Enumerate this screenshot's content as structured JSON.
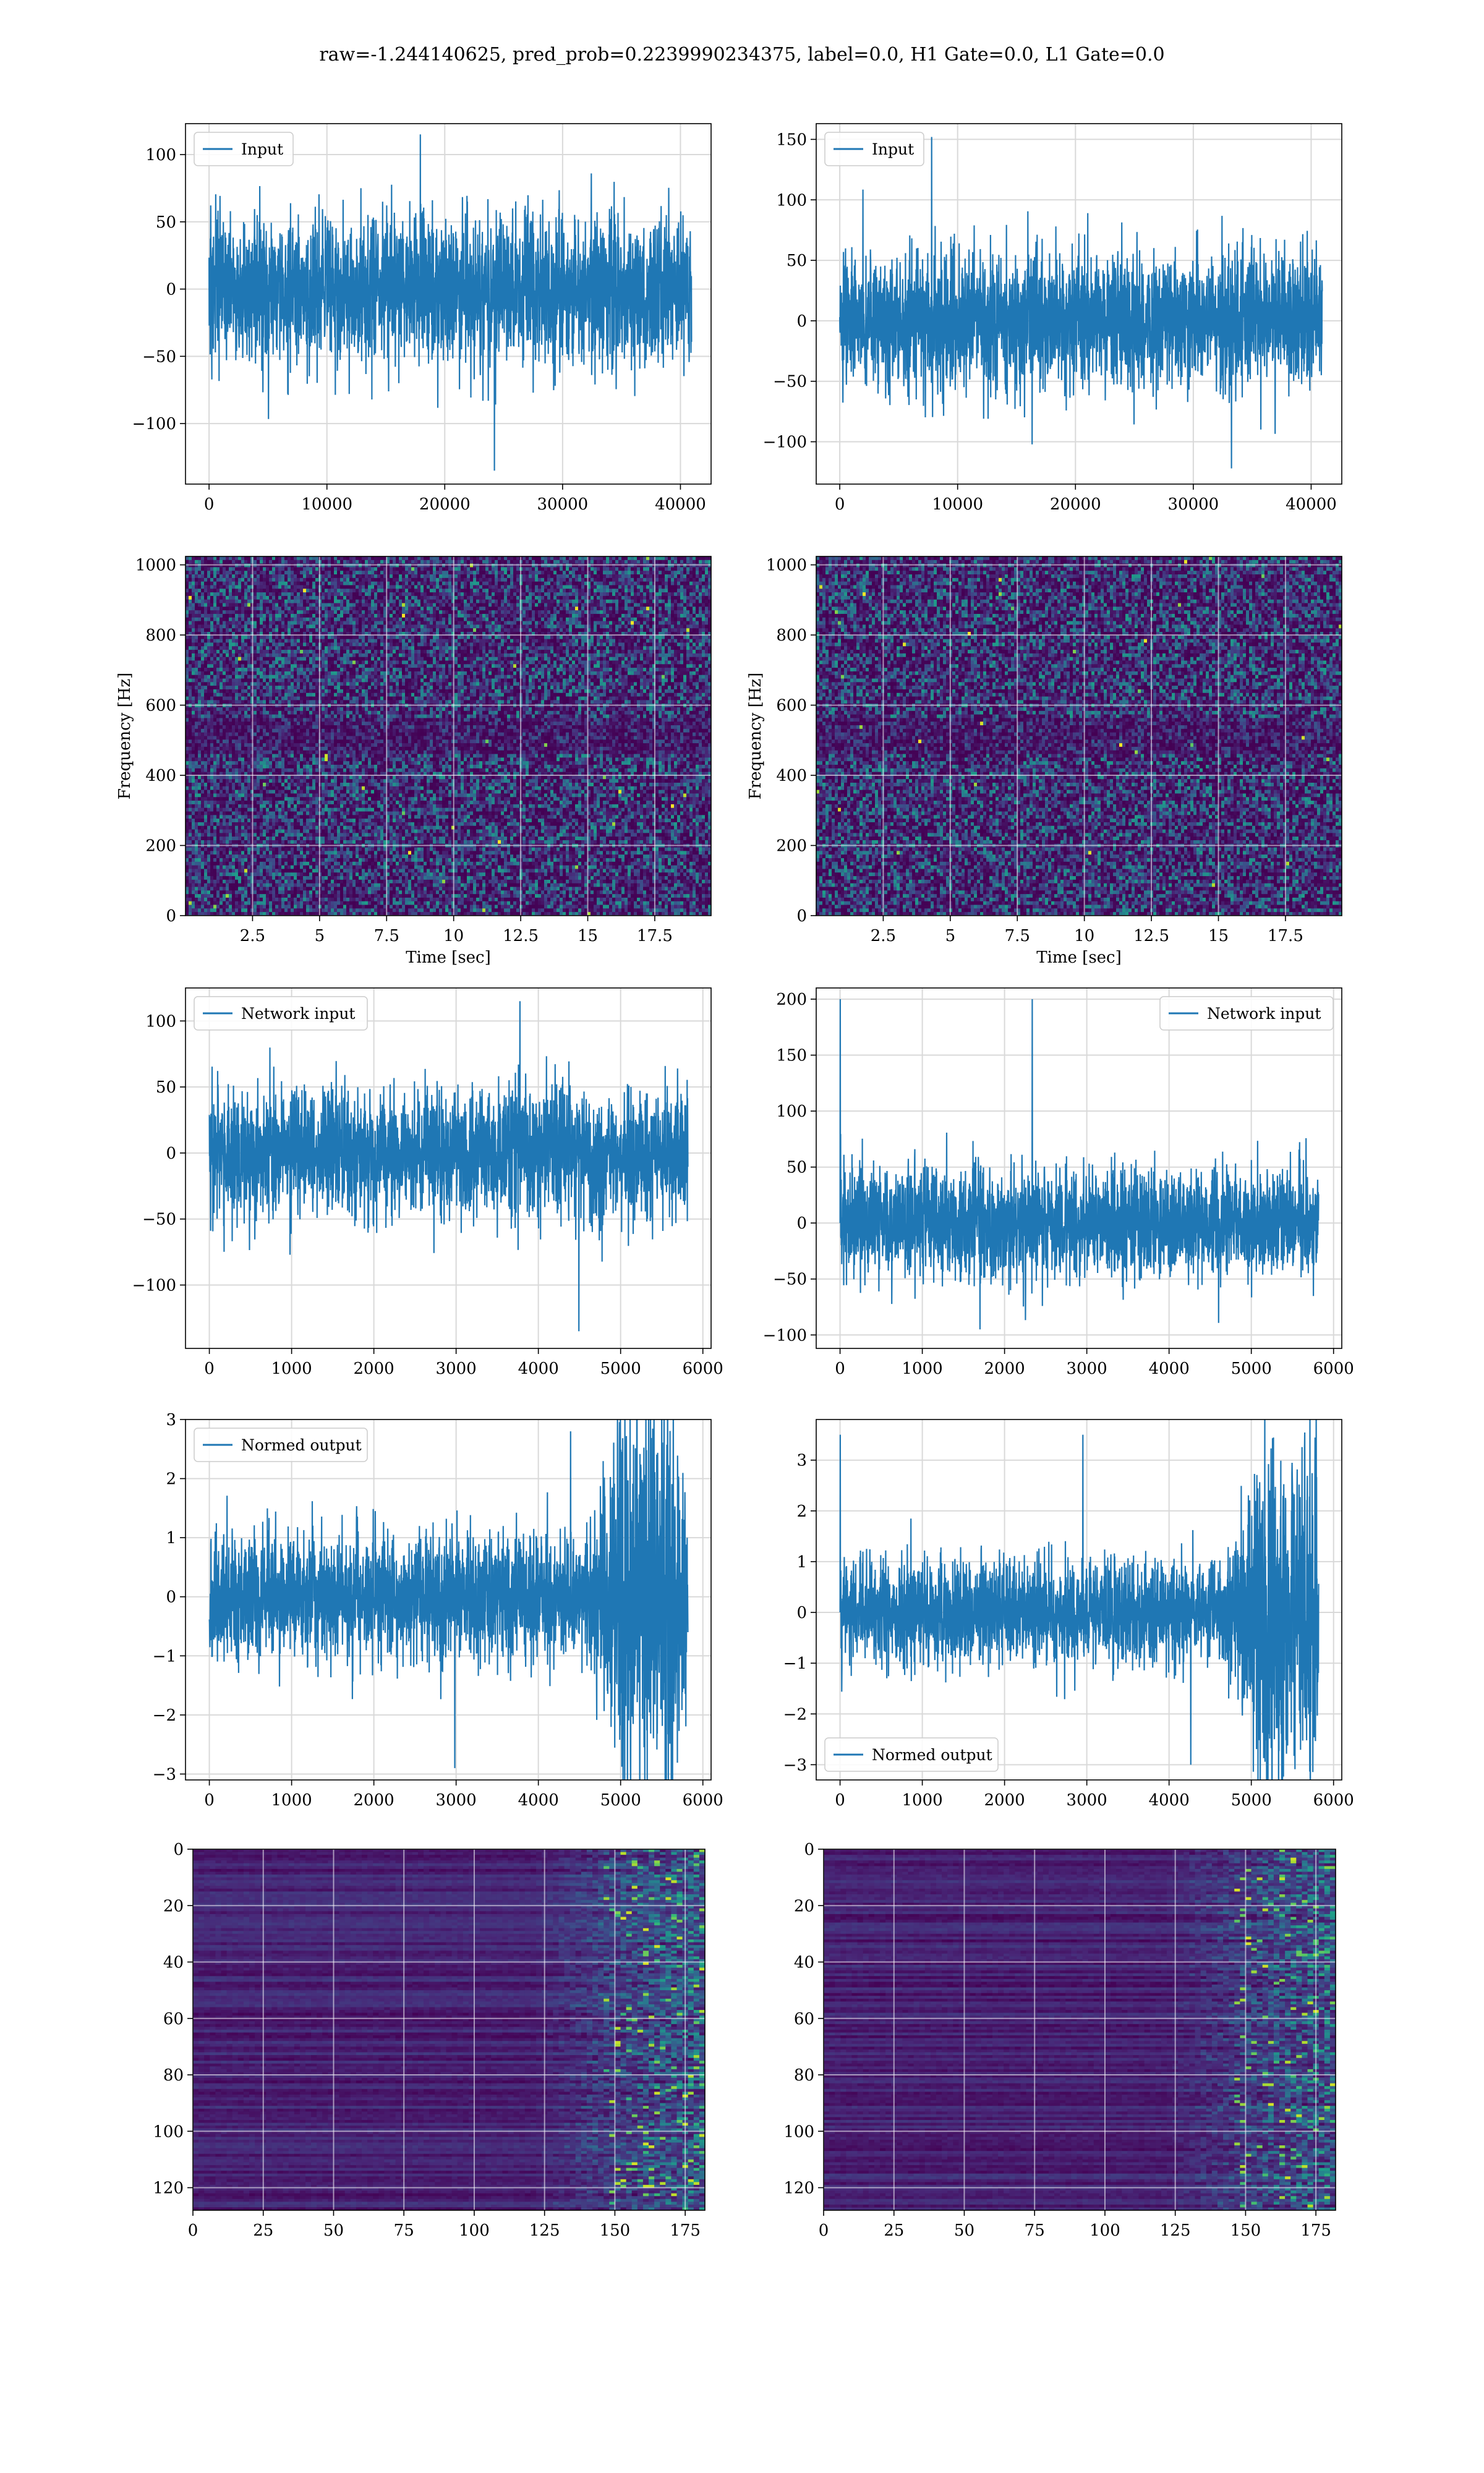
{
  "figure": {
    "title": "raw=-1.244140625, pred_prob=0.2239990234375, label=0.0, H1 Gate=0.0, L1 Gate=0.0",
    "line_color": "#1f77b4",
    "grid_color": "#d9d9d9",
    "colormap": "viridis"
  },
  "chart_data": [
    {
      "id": "input-h1",
      "type": "line",
      "series": [
        {
          "name": "Input"
        }
      ],
      "xlim": [
        -2000,
        42600
      ],
      "ylim": [
        -145,
        123
      ],
      "xticks": [
        0,
        10000,
        20000,
        30000,
        40000
      ],
      "yticks": [
        -100,
        -50,
        0,
        50,
        100
      ],
      "signal": {
        "n": 40960,
        "amp": 45,
        "peak_max": 115,
        "peak_min": -135
      },
      "legend": "top-left",
      "grid": true
    },
    {
      "id": "input-l1",
      "type": "line",
      "series": [
        {
          "name": "Input"
        }
      ],
      "xlim": [
        -2000,
        42600
      ],
      "ylim": [
        -135,
        163
      ],
      "xticks": [
        0,
        10000,
        20000,
        30000,
        40000
      ],
      "yticks": [
        -100,
        -50,
        0,
        50,
        100,
        150
      ],
      "signal": {
        "n": 40960,
        "amp": 45,
        "peak_max": 152,
        "peak_min": -122
      },
      "legend": "top-left",
      "grid": true
    },
    {
      "id": "spec-h1",
      "type": "heatmap",
      "xlim": [
        0,
        19.6
      ],
      "ylim": [
        0,
        1024
      ],
      "xticks": [
        2.5,
        5.0,
        7.5,
        10.0,
        12.5,
        15.0,
        17.5
      ],
      "yticks": [
        0,
        200,
        400,
        600,
        800,
        1000
      ],
      "xlabel": "Time [sec]",
      "ylabel": "Frequency [Hz]",
      "grid": true
    },
    {
      "id": "spec-l1",
      "type": "heatmap",
      "xlim": [
        0,
        19.6
      ],
      "ylim": [
        0,
        1024
      ],
      "xticks": [
        2.5,
        5.0,
        7.5,
        10.0,
        12.5,
        15.0,
        17.5
      ],
      "yticks": [
        0,
        200,
        400,
        600,
        800,
        1000
      ],
      "xlabel": "Time [sec]",
      "ylabel": "Frequency [Hz]",
      "grid": true
    },
    {
      "id": "netin-h1",
      "type": "line",
      "series": [
        {
          "name": "Network input"
        }
      ],
      "xlim": [
        -290,
        6100
      ],
      "ylim": [
        -148,
        125
      ],
      "xticks": [
        0,
        1000,
        2000,
        3000,
        4000,
        5000,
        6000
      ],
      "yticks": [
        -100,
        -50,
        0,
        50,
        100
      ],
      "signal": {
        "n": 5820,
        "amp": 40,
        "peak_max": 115,
        "peak_min": -135
      },
      "legend": "top-left",
      "grid": true
    },
    {
      "id": "netin-l1",
      "type": "line",
      "series": [
        {
          "name": "Network input"
        }
      ],
      "xlim": [
        -290,
        6100
      ],
      "ylim": [
        -112,
        210
      ],
      "xticks": [
        0,
        1000,
        2000,
        3000,
        4000,
        5000,
        6000
      ],
      "yticks": [
        -100,
        -50,
        0,
        50,
        100,
        150,
        200
      ],
      "signal": {
        "n": 5820,
        "amp": 40,
        "peak_max": 200,
        "peak_min": -95
      },
      "legend": "top-right",
      "grid": true
    },
    {
      "id": "normout-h1",
      "type": "line",
      "series": [
        {
          "name": "Normed output"
        }
      ],
      "xlim": [
        -290,
        6100
      ],
      "ylim": [
        -3.1,
        3.0
      ],
      "xticks": [
        0,
        1000,
        2000,
        3000,
        4000,
        5000,
        6000
      ],
      "yticks": [
        -3,
        -2,
        -1,
        0,
        1,
        2,
        3
      ],
      "signal": {
        "n": 5820,
        "amp": 0.85,
        "peak_max": 2.8,
        "peak_min": -2.9,
        "burst_start": 4600,
        "burst_amp": 1.8
      },
      "legend": "top-left",
      "grid": true
    },
    {
      "id": "normout-l1",
      "type": "line",
      "series": [
        {
          "name": "Normed output"
        }
      ],
      "xlim": [
        -290,
        6100
      ],
      "ylim": [
        -3.3,
        3.8
      ],
      "xticks": [
        0,
        1000,
        2000,
        3000,
        4000,
        5000,
        6000
      ],
      "yticks": [
        -3,
        -2,
        -1,
        0,
        1,
        2,
        3
      ],
      "signal": {
        "n": 5820,
        "amp": 0.85,
        "peak_max": 3.5,
        "peak_min": -3.0,
        "burst_start": 4700,
        "burst_amp": 1.8
      },
      "legend": "bottom-left",
      "grid": true
    },
    {
      "id": "embed-h1",
      "type": "heatmap",
      "xlim": [
        0,
        182
      ],
      "ylim": [
        128,
        0
      ],
      "xticks": [
        0,
        25,
        50,
        75,
        100,
        125,
        150,
        175
      ],
      "yticks": [
        0,
        20,
        40,
        60,
        80,
        100,
        120
      ],
      "grid": true
    },
    {
      "id": "embed-l1",
      "type": "heatmap",
      "xlim": [
        0,
        182
      ],
      "ylim": [
        128,
        0
      ],
      "xticks": [
        0,
        25,
        50,
        75,
        100,
        125,
        150,
        175
      ],
      "yticks": [
        0,
        20,
        40,
        60,
        80,
        100,
        120
      ],
      "grid": true
    }
  ]
}
